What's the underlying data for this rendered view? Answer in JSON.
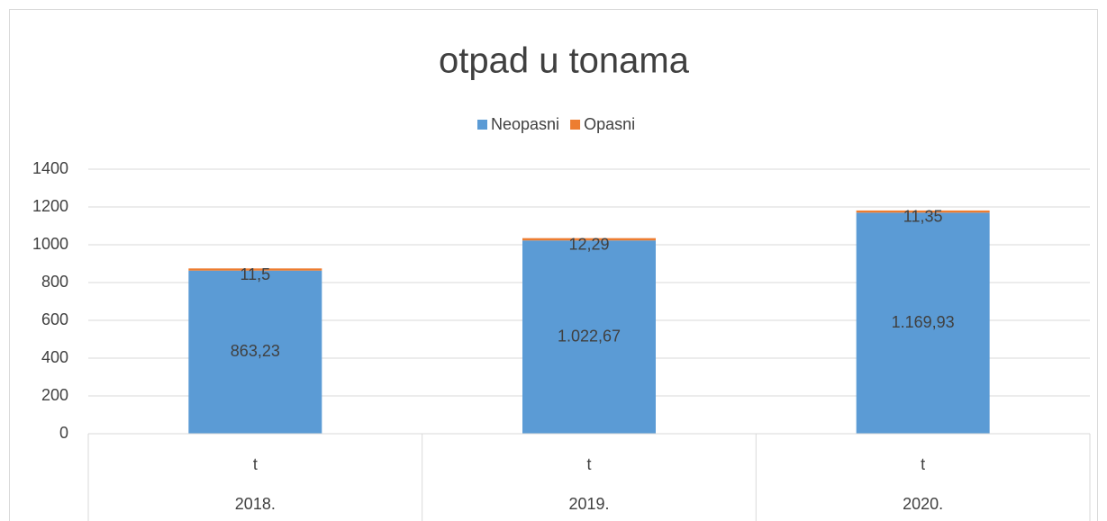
{
  "chart_data": {
    "type": "stacked_bar",
    "title": "otpad u tonama",
    "categories": [
      "2018.",
      "2019.",
      "2020."
    ],
    "sub_categories": [
      "t",
      "t",
      "t"
    ],
    "series": [
      {
        "name": "Neopasni",
        "color": "#5b9bd5",
        "values": [
          863.23,
          1022.67,
          1169.93
        ],
        "value_labels": [
          "863,23",
          "1.022,67",
          "1.169,93"
        ]
      },
      {
        "name": "Opasni",
        "color": "#ed7d31",
        "values": [
          11.5,
          12.29,
          11.35
        ],
        "value_labels": [
          "11,5",
          "12,29",
          "11,35"
        ]
      }
    ],
    "ylim": [
      0,
      1400
    ],
    "yticks": [
      0,
      200,
      400,
      600,
      800,
      1000,
      1200,
      1400
    ],
    "grid": true,
    "legend": "top"
  }
}
